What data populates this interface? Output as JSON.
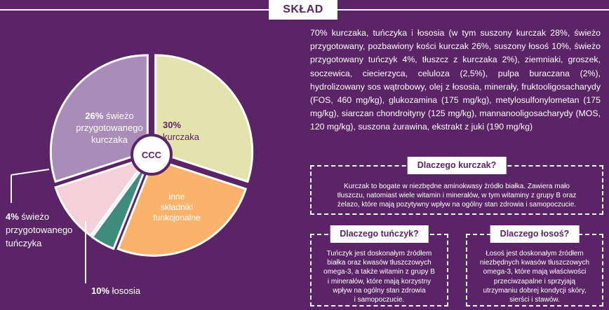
{
  "header": {
    "title": "SKŁAD"
  },
  "chart_data": {
    "type": "pie",
    "center_label": "CCC",
    "slices": [
      {
        "value": 30,
        "pct": "30%",
        "label": "kurczaka",
        "color": "#e4e3ae"
      },
      {
        "value": 26,
        "pct": "26%",
        "label": "świeżo przygotowanego kurczaka",
        "color": "#fbb36b"
      },
      {
        "value": 4,
        "pct": "4%",
        "label": "świeżo przygotowanego tuńczyka",
        "color": "#3f8c7e"
      },
      {
        "value": 10,
        "pct": "10%",
        "label": "łososia",
        "color": "#f5cfd9"
      },
      {
        "value": 30,
        "label": "inne składniki funkcjonalne",
        "color": "#a98db8"
      }
    ]
  },
  "pie_labels": {
    "kurczaka_pct": "30%",
    "kurczaka_text": "kurczaka",
    "fresh_chicken_pct": "26%",
    "fresh_chicken_text_1": "świeżo",
    "fresh_chicken_text_2": "przygotowanego",
    "fresh_chicken_text_3": "kurczaka",
    "other_1": "inne",
    "other_2": "składniki",
    "other_3": "funkcjonalne",
    "tuna_pct": "4%",
    "tuna_text_1": "świeżo",
    "tuna_text_2": "przygotowanego",
    "tuna_text_3": "tuńczyka",
    "salmon_pct": "10%",
    "salmon_text": "łososia",
    "center": "CCC"
  },
  "composition_text": "70% kurczaka, tuńczyka i łososia (w tym suszony kurczak 28%, świeżo przygotowany, pozbawiony kości kurczak 26%, suszony łosoś 10%, świeżo przygotowany tuńczyk 4%, tłuszcz z kurczaka 2%), ziemniaki, groszek, soczewica, ciecierzyca, celuloza (2,5%), pulpa buraczana (2%), hydrolizowany sos wątrobowy, olej z łososia, minerały, fruktooligosacharydy (FOS, 460 mg/kg), glukozamina (175 mg/kg), metylosulfonylometan (175 mg/kg), siarczan chondroityny (125 mg/kg), mannanooligosacharydy (MOS, 120 mg/kg), suszona żurawina, ekstrakt z juki (190 mg/kg)",
  "boxes": {
    "chicken": {
      "title": "Dlaczego kurczak?",
      "line1": "Kurczak to bogate w niezbędne aminokwasy źródło białka. Zawiera mało",
      "line2": "tłuszczu, natomiast wiele witamin i minerałów, w tym witaminy z grupy B oraz",
      "line3": "żelazo, które mają pozytywny wpływ na ogólny stan zdrowia i samopoczucie."
    },
    "tuna": {
      "title": "Dlaczego tuńczyk?",
      "lines": [
        "Tuńczyk jest doskonałym źródłem",
        "białka oraz kwasów tłuszczowych",
        "omega-3, a także witamin z grupy B",
        "i minerałów, które mają korzystny",
        "wpływ na ogólny stan zdrowia",
        "i samopoczucie."
      ]
    },
    "salmon": {
      "title": "Dlaczego łosoś?",
      "lines": [
        "Łosoś jest doskonałym źródłem",
        "niezbędnych kwasów tłuszczowych",
        "omega-3, które mają właściwości",
        "przeciwzapalne i sprzyjają",
        "utrzymaniu dobrej kondycji skóry,",
        "sierści i stawów."
      ]
    }
  }
}
